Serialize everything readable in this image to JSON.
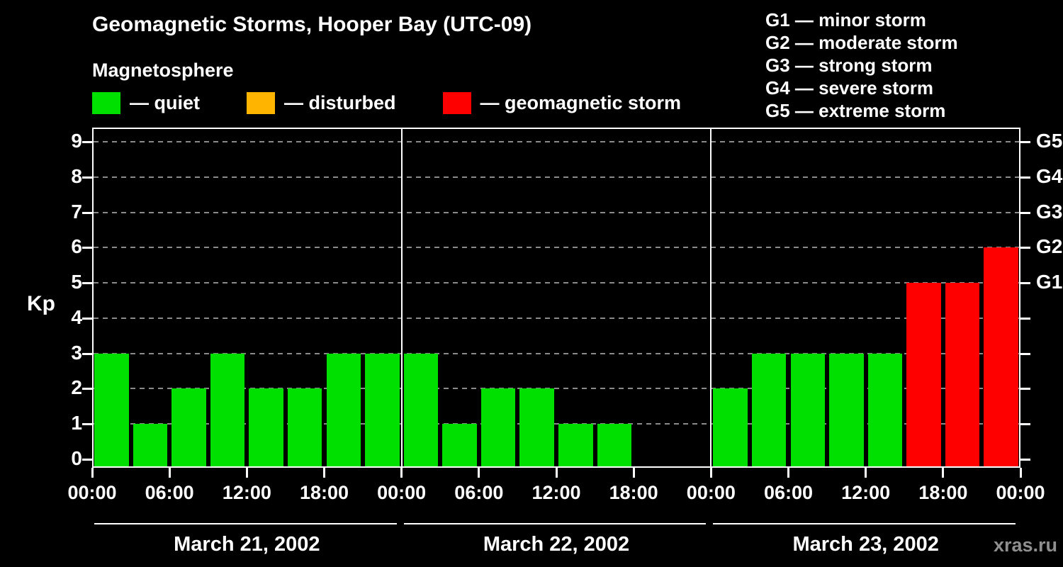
{
  "title": "Geomagnetic Storms, Hooper Bay (UTC-09)",
  "legend": {
    "heading": "Magnetosphere",
    "items": [
      {
        "name": "quiet",
        "label": "— quiet",
        "color": "#00e000"
      },
      {
        "name": "disturbed",
        "label": "— disturbed",
        "color": "#ffb400"
      },
      {
        "name": "storm",
        "label": "— geomagnetic storm",
        "color": "#ff0000"
      }
    ]
  },
  "storm_scale_legend": [
    "G1 — minor storm",
    "G2 — moderate storm",
    "G3 — strong storm",
    "G4 — severe storm",
    "G5 — extreme storm"
  ],
  "watermark": "xras.ru",
  "chart_data": {
    "type": "bar",
    "title": "Geomagnetic Storms, Hooper Bay (UTC-09)",
    "ylabel": "Kp",
    "ylim": [
      0,
      9
    ],
    "yticks": [
      0,
      1,
      2,
      3,
      4,
      5,
      6,
      7,
      8,
      9
    ],
    "grid": {
      "horizontal": "dashed",
      "color": "#8a8a8a"
    },
    "right_axis": [
      {
        "label": "G1",
        "kp": 5
      },
      {
        "label": "G2",
        "kp": 6
      },
      {
        "label": "G3",
        "kp": 7
      },
      {
        "label": "G4",
        "kp": 8
      },
      {
        "label": "G5",
        "kp": 9
      }
    ],
    "x_tick_labels": [
      "00:00",
      "06:00",
      "12:00",
      "18:00"
    ],
    "x_final_label": "00:00",
    "bar_hours": 3,
    "color_rules": {
      "quiet_max": 3,
      "disturbed": 4,
      "storm_min": 5
    },
    "colors": {
      "quiet": "#00e000",
      "disturbed": "#ffb400",
      "storm": "#ff0000"
    },
    "days": [
      {
        "date": "March 21, 2002",
        "kp": [
          3,
          1,
          2,
          3,
          2,
          2,
          3,
          3
        ]
      },
      {
        "date": "March 22, 2002",
        "kp": [
          3,
          1,
          2,
          2,
          1,
          1,
          0,
          0
        ]
      },
      {
        "date": "March 23, 2002",
        "kp": [
          2,
          3,
          3,
          3,
          3,
          5,
          5,
          6
        ]
      }
    ]
  }
}
